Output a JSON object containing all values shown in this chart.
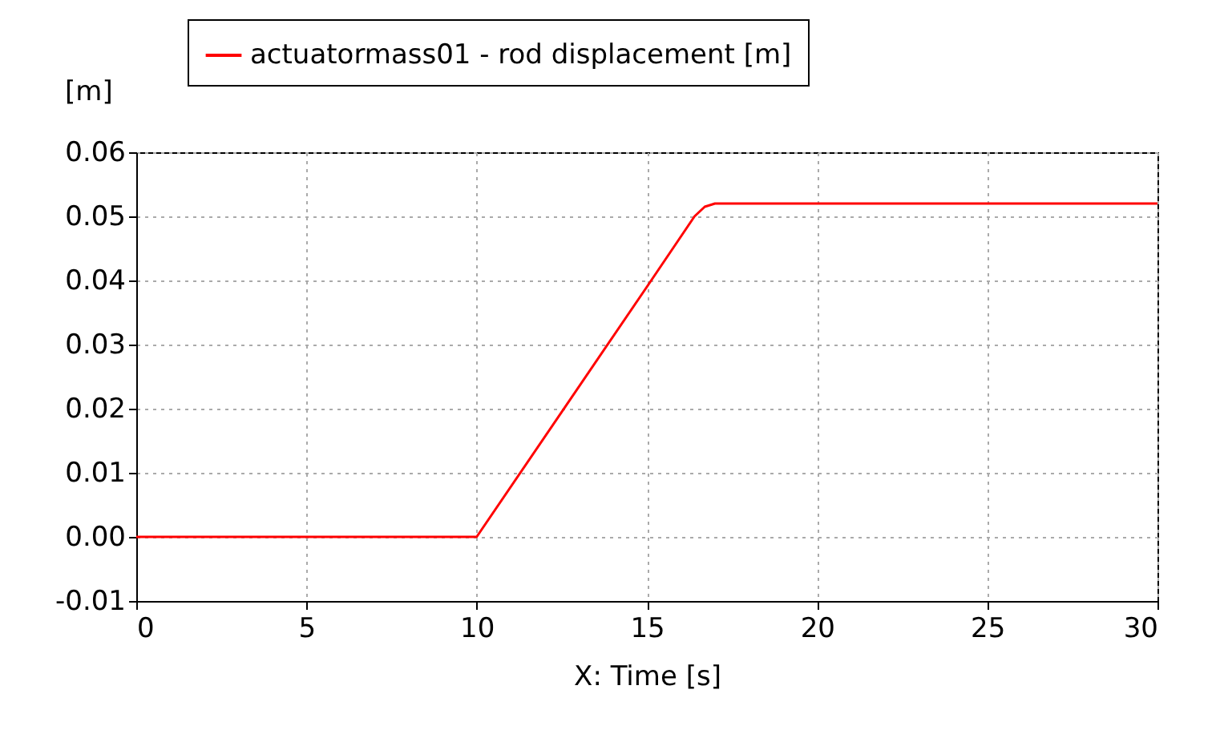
{
  "chart_data": {
    "type": "line",
    "xlabel": "X: Time [s]",
    "ylabel": "[m]",
    "series": [
      {
        "name": "actuatormass01 - rod displacement [m]",
        "color": "#ff0000",
        "x": [
          0,
          10,
          15,
          16.4,
          16.7,
          17,
          30
        ],
        "values": [
          0,
          0,
          0.039,
          0.05,
          0.0515,
          0.052,
          0.052
        ]
      }
    ],
    "xlim": [
      0,
      30
    ],
    "xticks": [
      0,
      5,
      10,
      15,
      20,
      25,
      30
    ],
    "ylim": [
      -0.01,
      0.06
    ],
    "yticks": [
      {
        "value": -0.01,
        "label": "-0.01"
      },
      {
        "value": 0,
        "label": "0.00"
      },
      {
        "value": 0.01,
        "label": "0.01"
      },
      {
        "value": 0.02,
        "label": "0.02"
      },
      {
        "value": 0.03,
        "label": "0.03"
      },
      {
        "value": 0.04,
        "label": "0.04"
      },
      {
        "value": 0.05,
        "label": "0.05"
      },
      {
        "value": 0.06,
        "label": "0.06"
      }
    ],
    "grid": true,
    "legend": "top",
    "line_style": "solid"
  }
}
